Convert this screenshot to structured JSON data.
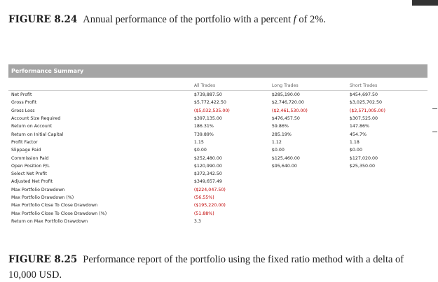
{
  "figure_top": {
    "number": "FIGURE 8.24",
    "text": "Annual performance of the portfolio with a percent",
    "variable": "f",
    "text_end": "of 2%."
  },
  "table": {
    "title": "Performance Summary",
    "columns": [
      "All Trades",
      "Long Trades",
      "Short Trades"
    ],
    "rows": [
      {
        "label": "Net Profit",
        "values": [
          "$739,887.50",
          "$285,190.00",
          "$454,697.50"
        ]
      },
      {
        "label": "Gross Profit",
        "values": [
          "$5,772,422.50",
          "$2,746,720.00",
          "$3,025,702.50"
        ]
      },
      {
        "label": "Gross Loss",
        "values": [
          "($5,032,535.00)",
          "($2,461,530.00)",
          "($2,571,005.00)"
        ],
        "color": "#c00000"
      },
      {
        "label": "Account Size Required",
        "values": [
          "$397,135.00",
          "$476,457.50",
          "$307,525.00"
        ]
      },
      {
        "label": "Return on Account",
        "values": [
          "186.31%",
          "59.86%",
          "147.86%"
        ]
      },
      {
        "label": "Return on Initial Capital",
        "values": [
          "739.89%",
          "285.19%",
          "454.7%"
        ]
      },
      {
        "label": "Profit Factor",
        "values": [
          "1.15",
          "1.12",
          "1.18"
        ]
      },
      {
        "label": "Slippage Paid",
        "values": [
          "$0.00",
          "$0.00",
          "$0.00"
        ]
      },
      {
        "label": "Commission Paid",
        "values": [
          "$252,480.00",
          "$125,460.00",
          "$127,020.00"
        ]
      },
      {
        "label": "Open Position P/L",
        "values": [
          "$120,990.00",
          "$95,640.00",
          "$25,350.00"
        ]
      },
      {
        "label": "Select Net Profit",
        "values": [
          "$372,342.50"
        ]
      },
      {
        "label": "Adjusted Net Profit",
        "values": [
          "$349,657.49"
        ]
      },
      {
        "label": "Max Portfolio Drawdown",
        "values": [
          "($224,047.50)"
        ],
        "color": "#c00000"
      },
      {
        "label": "Max Portfolio Drawdown (%)",
        "values": [
          "(56.55%)"
        ],
        "color": "#c00000"
      },
      {
        "label": "Max Portfolio Close To Close Drawdown",
        "values": [
          "($195,220.00)"
        ],
        "color": "#c00000"
      },
      {
        "label": "Max Portfolio Close To Close Drawdown (%)",
        "values": [
          "(51.88%)"
        ],
        "color": "#c00000"
      },
      {
        "label": "Return on Max Portfolio Drawdown",
        "values": [
          "3.3"
        ]
      }
    ]
  },
  "figure_bottom": {
    "number": "FIGURE 8.25",
    "text": "Performance report of the portfolio using the fixed ratio method with a delta of 10,000 USD."
  }
}
